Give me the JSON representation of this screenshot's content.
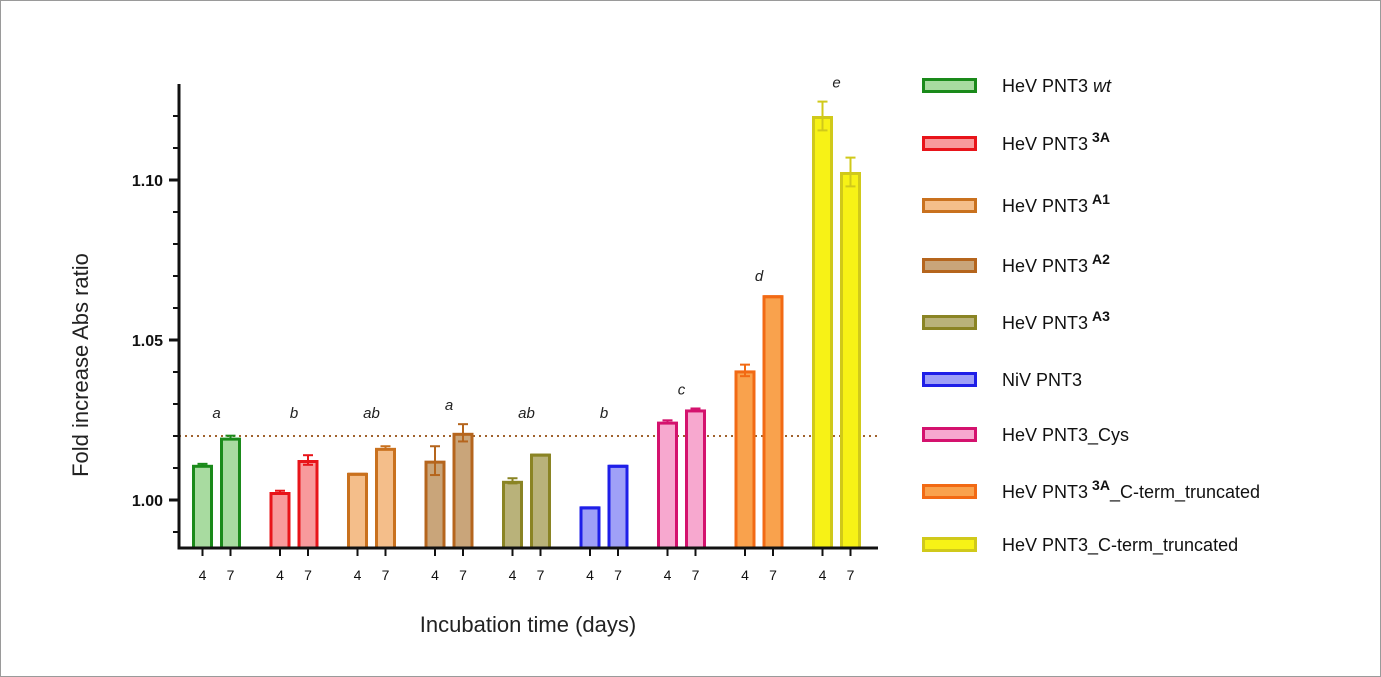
{
  "chart_data": {
    "type": "bar",
    "xlabel": "Incubation time (days)",
    "ylabel": "Fold increase Abs ratio",
    "ylim": [
      0.985,
      1.13
    ],
    "yticks_labeled": [
      "1.00",
      "1.05",
      "1.10"
    ],
    "reference_line": 1.02,
    "reference_color": "#a0622d",
    "groups": [
      {
        "base": "HeV PNT3",
        "italic": "wt",
        "sup": "",
        "tail": "",
        "stroke": "#1a8a1a",
        "fill": "#a8dba0",
        "letter": "a",
        "bars": [
          {
            "day": "4",
            "value": 1.011,
            "err": 0.0003
          },
          {
            "day": "7",
            "value": 1.0195,
            "err": 0.0006
          }
        ]
      },
      {
        "base": "HeV PNT3",
        "italic": "",
        "sup": "3A",
        "tail": "",
        "stroke": "#e8141a",
        "fill": "#f89a9c",
        "letter": "b",
        "bars": [
          {
            "day": "4",
            "value": 1.0025,
            "err": 0.0004
          },
          {
            "day": "7",
            "value": 1.0125,
            "err": 0.0015
          }
        ]
      },
      {
        "base": "HeV PNT3",
        "italic": "",
        "sup": "A1",
        "tail": "",
        "stroke": "#c9711e",
        "fill": "#f4be8a",
        "letter": "ab",
        "bars": [
          {
            "day": "4",
            "value": 1.0085,
            "err": 0
          },
          {
            "day": "7",
            "value": 1.0163,
            "err": 0.0005
          }
        ]
      },
      {
        "base": "HeV PNT3",
        "italic": "",
        "sup": "A2",
        "tail": "",
        "stroke": "#b5651d",
        "fill": "#c9a57a",
        "letter": "a",
        "bars": [
          {
            "day": "4",
            "value": 1.0123,
            "err": 0.0045
          },
          {
            "day": "7",
            "value": 1.021,
            "err": 0.0027
          }
        ]
      },
      {
        "base": "HeV PNT3",
        "italic": "",
        "sup": "A3",
        "tail": "",
        "stroke": "#8a8424",
        "fill": "#b9b27a",
        "letter": "ab",
        "bars": [
          {
            "day": "4",
            "value": 1.006,
            "err": 0.0008
          },
          {
            "day": "7",
            "value": 1.0145,
            "err": 0
          }
        ]
      },
      {
        "base": "NiV PNT3",
        "italic": "",
        "sup": "",
        "tail": "",
        "stroke": "#1f1fe8",
        "fill": "#9fa0f7",
        "letter": "b",
        "bars": [
          {
            "day": "4",
            "value": 0.998,
            "err": 0
          },
          {
            "day": "7",
            "value": 1.011,
            "err": 0
          }
        ]
      },
      {
        "base": "HeV PNT3_Cys",
        "italic": "",
        "sup": "",
        "tail": "",
        "stroke": "#d4126e",
        "fill": "#f7a8cf",
        "letter": "c",
        "bars": [
          {
            "day": "4",
            "value": 1.0245,
            "err": 0.0004
          },
          {
            "day": "7",
            "value": 1.0283,
            "err": 0.0003
          }
        ]
      },
      {
        "base": "HeV PNT3",
        "italic": "",
        "sup": "3A",
        "tail": "_C-term_truncated",
        "stroke": "#f26a14",
        "fill": "#f9a24d",
        "letter": "d",
        "bars": [
          {
            "day": "4",
            "value": 1.0405,
            "err": 0.0018
          },
          {
            "day": "7",
            "value": 1.064,
            "err": 0
          }
        ]
      },
      {
        "base": "HeV PNT3_C-term_truncated",
        "italic": "",
        "sup": "",
        "tail": "",
        "stroke": "#d0c91a",
        "fill": "#f7f216",
        "letter": "e",
        "bars": [
          {
            "day": "4",
            "value": 1.12,
            "err": 0.0045
          },
          {
            "day": "7",
            "value": 1.1025,
            "err": 0.0045
          }
        ]
      }
    ]
  }
}
